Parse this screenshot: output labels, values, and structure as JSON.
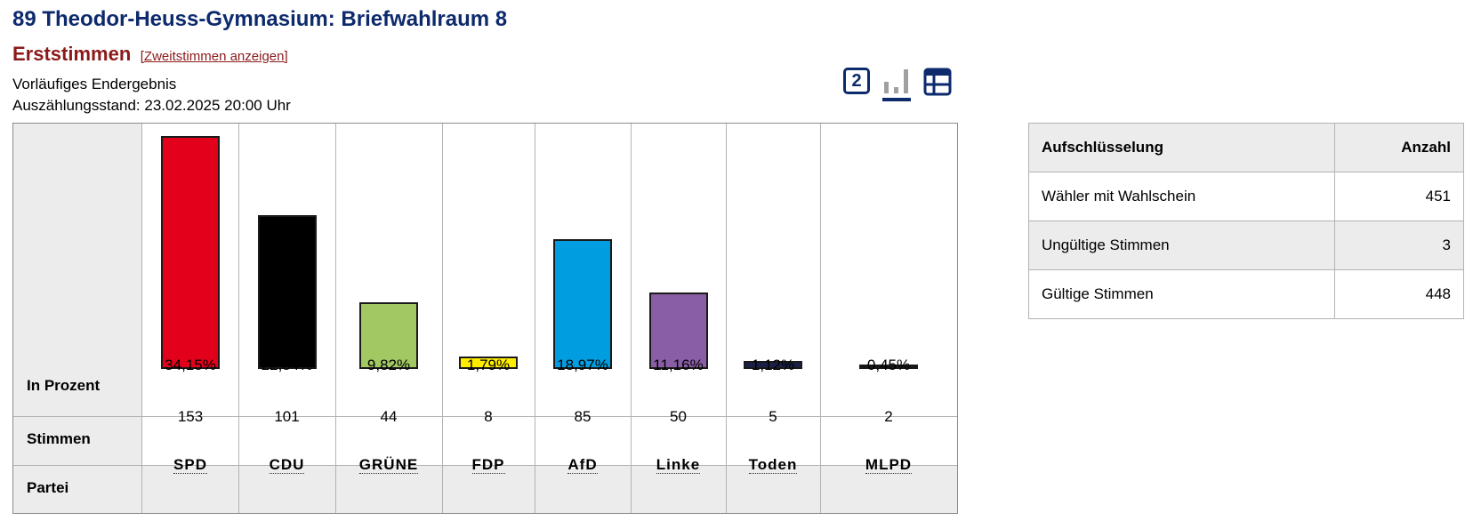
{
  "page": {
    "title": "89 Theodor-Heuss-Gymnasium: Briefwahlraum 8",
    "vote_type": "Erststimmen",
    "switch_link": "[Zweitstimmen anzeigen]",
    "status": "Vorläufiges Endergebnis",
    "count_state": "Auszählungsstand: 23.02.2025 20:00 Uhr",
    "view_toggle_label": "2"
  },
  "chart_data": {
    "type": "bar",
    "row_labels": {
      "percent": "In Prozent",
      "votes": "Stimmen",
      "party": "Partei"
    },
    "categories": [
      "SPD",
      "CDU",
      "GRÜNE",
      "FDP",
      "AfD",
      "Linke",
      "Toden",
      "MLPD"
    ],
    "values": [
      34.15,
      22.54,
      9.82,
      1.79,
      18.97,
      11.16,
      1.12,
      0.45
    ],
    "value_labels": [
      "34,15%",
      "22,54%",
      "9,82%",
      "1,79%",
      "18,97%",
      "11,16%",
      "1,12%",
      "0,45%"
    ],
    "votes": [
      153,
      101,
      44,
      8,
      85,
      50,
      5,
      2
    ],
    "colors": [
      "#e3001b",
      "#000000",
      "#a1c862",
      "#ffed00",
      "#009ee0",
      "#8a5ea6",
      "#1a1f4a",
      "#111111"
    ],
    "ylim": [
      0,
      34.15
    ]
  },
  "breakdown": {
    "headers": [
      "Aufschlüsselung",
      "Anzahl"
    ],
    "rows": [
      {
        "label": "Wähler mit Wahlschein",
        "value": "451"
      },
      {
        "label": "Ungültige Stimmen",
        "value": "3"
      },
      {
        "label": "Gültige Stimmen",
        "value": "448"
      }
    ]
  }
}
